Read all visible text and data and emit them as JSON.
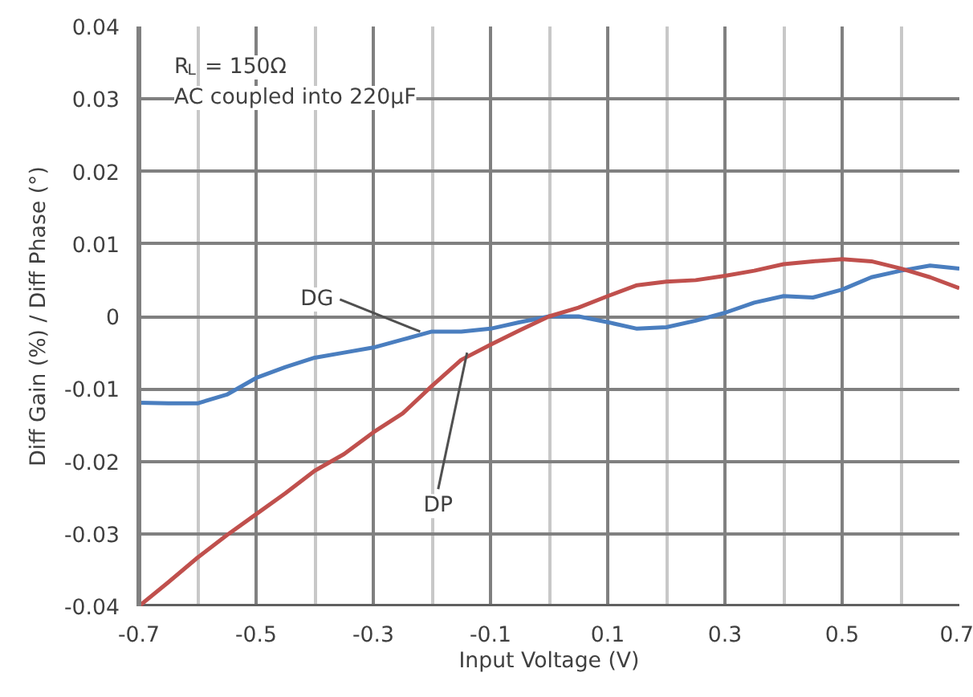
{
  "chart_data": {
    "type": "line",
    "xlabel": "Input Voltage (V)",
    "ylabel": "Diff Gain (%) / Diff Phase (°)",
    "xlim": [
      -0.7,
      0.7
    ],
    "ylim": [
      -0.04,
      0.04
    ],
    "xticks": [
      -0.7,
      {
        "value": -0.6,
        "label": null
      },
      -0.5,
      {
        "value": -0.4,
        "label": null
      },
      -0.3,
      {
        "value": -0.2,
        "label": null
      },
      -0.1,
      {
        "value": 0,
        "label": null
      },
      0.1,
      {
        "value": 0.2,
        "label": null
      },
      0.3,
      {
        "value": 0.4,
        "label": null
      },
      0.5,
      {
        "value": 0.6,
        "label": null
      },
      0.7
    ],
    "yticks": [
      -0.04,
      -0.03,
      -0.02,
      -0.01,
      0,
      0.01,
      0.02,
      0.03,
      0.04
    ],
    "grid": true,
    "marker": "none",
    "line_style": "solid",
    "x": [
      -0.7,
      -0.65,
      -0.6,
      -0.55,
      -0.5,
      -0.45,
      -0.4,
      -0.35,
      -0.3,
      -0.25,
      -0.2,
      -0.15,
      -0.1,
      -0.05,
      0,
      0.05,
      0.1,
      0.15,
      0.2,
      0.25,
      0.3,
      0.35,
      0.4,
      0.45,
      0.5,
      0.55,
      0.6,
      0.65,
      0.7
    ],
    "series": [
      {
        "color": "#4a7ebf",
        "values": [
          -0.0119,
          -0.012,
          -0.012,
          -0.0108,
          -0.0085,
          -0.007,
          -0.0057,
          -0.005,
          -0.0043,
          -0.0032,
          -0.0021,
          -0.0021,
          -0.0017,
          -0.0008,
          0,
          0,
          -0.0008,
          -0.0017,
          -0.0015,
          -0.0006,
          0.0005,
          0.0019,
          0.0028,
          0.0026,
          0.0037,
          0.0054,
          0.0063,
          0.007,
          0.0066
        ]
      },
      {
        "color": "#c0504d",
        "values": [
          -0.04,
          -0.0367,
          -0.0333,
          -0.0302,
          -0.0273,
          -0.0244,
          -0.0213,
          -0.019,
          -0.016,
          -0.0134,
          -0.0096,
          -0.006,
          -0.0039,
          -0.0019,
          0,
          0.0012,
          0.0028,
          0.0043,
          0.0048,
          0.005,
          0.0056,
          0.0063,
          0.0072,
          0.0076,
          0.0079,
          0.0076,
          0.0066,
          0.0054,
          0.0039
        ]
      }
    ],
    "annotations": [
      "R$_{L}$ = 150Ω",
      "AC coupled into 220µF",
      {
        "text": "DG",
        "x": -0.22,
        "y": -0.0021
      },
      {
        "text": "DP",
        "x": -0.14,
        "y": -0.005
      }
    ]
  }
}
